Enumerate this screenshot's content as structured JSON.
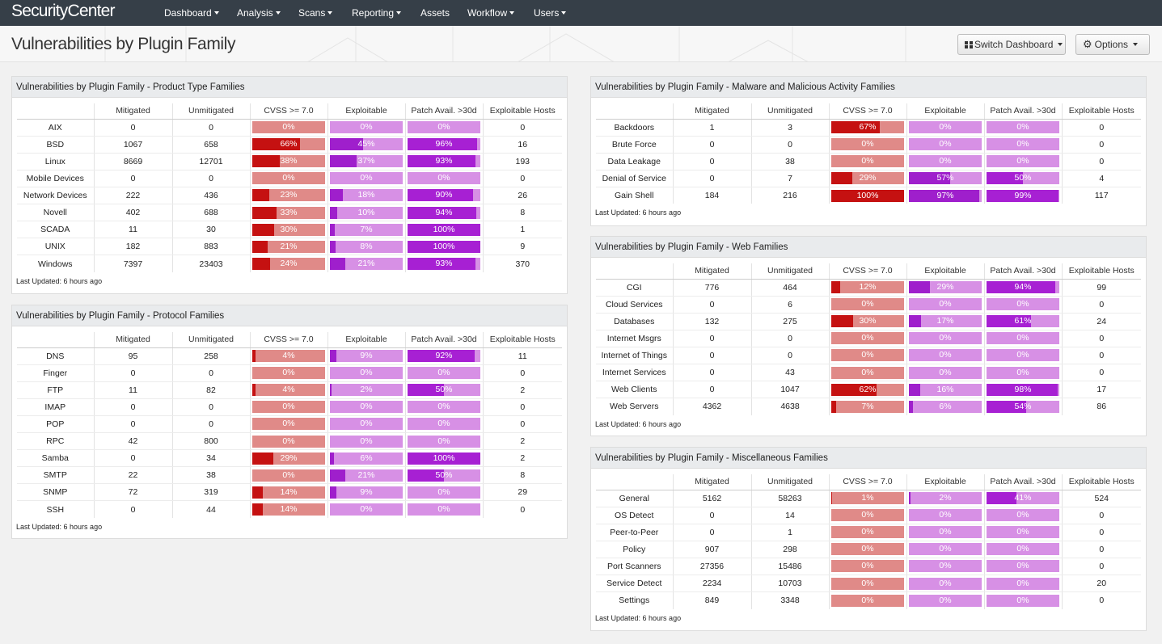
{
  "app": {
    "brand": "SecurityCenter",
    "nav": [
      "Dashboard",
      "Analysis",
      "Scans",
      "Reporting",
      "Assets",
      "Workflow",
      "Users"
    ]
  },
  "page": {
    "title": "Vulnerabilities by Plugin Family",
    "switch_label": "Switch Dashboard",
    "options_label": "Options"
  },
  "colors": {
    "nav_bg": "#363f48",
    "cvss_fill": "#c51111",
    "cvss_track": "#e08a88",
    "purple_fill": "#a720d3",
    "purple_track": "#d790e5"
  },
  "columns": [
    "",
    "Mitigated",
    "Unmitigated",
    "CVSS >= 7.0",
    "Exploitable",
    "Patch Avail. >30d",
    "Exploitable Hosts"
  ],
  "panels": [
    {
      "id": "product",
      "title": "Vulnerabilities by Plugin Family - Product Type Families",
      "updated": "Last Updated: 6 hours ago",
      "rows": [
        {
          "name": "AIX",
          "mitigated": "0",
          "unmitigated": "0",
          "cvss": "0%",
          "exploitable": "0%",
          "patch": "0%",
          "hosts": "0"
        },
        {
          "name": "BSD",
          "mitigated": "1067",
          "unmitigated": "658",
          "cvss": "66%",
          "exploitable": "45%",
          "patch": "96%",
          "hosts": "16"
        },
        {
          "name": "Linux",
          "mitigated": "8669",
          "unmitigated": "12701",
          "cvss": "38%",
          "exploitable": "37%",
          "patch": "93%",
          "hosts": "193"
        },
        {
          "name": "Mobile Devices",
          "mitigated": "0",
          "unmitigated": "0",
          "cvss": "0%",
          "exploitable": "0%",
          "patch": "0%",
          "hosts": "0"
        },
        {
          "name": "Network Devices",
          "mitigated": "222",
          "unmitigated": "436",
          "cvss": "23%",
          "exploitable": "18%",
          "patch": "90%",
          "hosts": "26"
        },
        {
          "name": "Novell",
          "mitigated": "402",
          "unmitigated": "688",
          "cvss": "33%",
          "exploitable": "10%",
          "patch": "94%",
          "hosts": "8"
        },
        {
          "name": "SCADA",
          "mitigated": "11",
          "unmitigated": "30",
          "cvss": "30%",
          "exploitable": "7%",
          "patch": "100%",
          "hosts": "1"
        },
        {
          "name": "UNIX",
          "mitigated": "182",
          "unmitigated": "883",
          "cvss": "21%",
          "exploitable": "8%",
          "patch": "100%",
          "hosts": "9"
        },
        {
          "name": "Windows",
          "mitigated": "7397",
          "unmitigated": "23403",
          "cvss": "24%",
          "exploitable": "21%",
          "patch": "93%",
          "hosts": "370"
        }
      ]
    },
    {
      "id": "protocol",
      "title": "Vulnerabilities by Plugin Family - Protocol Families",
      "updated": "Last Updated: 6 hours ago",
      "rows": [
        {
          "name": "DNS",
          "mitigated": "95",
          "unmitigated": "258",
          "cvss": "4%",
          "exploitable": "9%",
          "patch": "92%",
          "hosts": "11"
        },
        {
          "name": "Finger",
          "mitigated": "0",
          "unmitigated": "0",
          "cvss": "0%",
          "exploitable": "0%",
          "patch": "0%",
          "hosts": "0"
        },
        {
          "name": "FTP",
          "mitigated": "11",
          "unmitigated": "82",
          "cvss": "4%",
          "exploitable": "2%",
          "patch": "50%",
          "hosts": "2"
        },
        {
          "name": "IMAP",
          "mitigated": "0",
          "unmitigated": "0",
          "cvss": "0%",
          "exploitable": "0%",
          "patch": "0%",
          "hosts": "0"
        },
        {
          "name": "POP",
          "mitigated": "0",
          "unmitigated": "0",
          "cvss": "0%",
          "exploitable": "0%",
          "patch": "0%",
          "hosts": "0"
        },
        {
          "name": "RPC",
          "mitigated": "42",
          "unmitigated": "800",
          "cvss": "0%",
          "exploitable": "0%",
          "patch": "0%",
          "hosts": "2"
        },
        {
          "name": "Samba",
          "mitigated": "0",
          "unmitigated": "34",
          "cvss": "29%",
          "exploitable": "6%",
          "patch": "100%",
          "hosts": "2"
        },
        {
          "name": "SMTP",
          "mitigated": "22",
          "unmitigated": "38",
          "cvss": "0%",
          "exploitable": "21%",
          "patch": "50%",
          "hosts": "8"
        },
        {
          "name": "SNMP",
          "mitigated": "72",
          "unmitigated": "319",
          "cvss": "14%",
          "exploitable": "9%",
          "patch": "0%",
          "hosts": "29"
        },
        {
          "name": "SSH",
          "mitigated": "0",
          "unmitigated": "44",
          "cvss": "14%",
          "exploitable": "0%",
          "patch": "0%",
          "hosts": "0"
        }
      ]
    },
    {
      "id": "malware",
      "title": "Vulnerabilities by Plugin Family - Malware and Malicious Activity Families",
      "updated": "Last Updated: 6 hours ago",
      "rows": [
        {
          "name": "Backdoors",
          "mitigated": "1",
          "unmitigated": "3",
          "cvss": "67%",
          "exploitable": "0%",
          "patch": "0%",
          "hosts": "0"
        },
        {
          "name": "Brute Force",
          "mitigated": "0",
          "unmitigated": "0",
          "cvss": "0%",
          "exploitable": "0%",
          "patch": "0%",
          "hosts": "0"
        },
        {
          "name": "Data Leakage",
          "mitigated": "0",
          "unmitigated": "38",
          "cvss": "0%",
          "exploitable": "0%",
          "patch": "0%",
          "hosts": "0"
        },
        {
          "name": "Denial of Service",
          "mitigated": "0",
          "unmitigated": "7",
          "cvss": "29%",
          "exploitable": "57%",
          "patch": "50%",
          "hosts": "4"
        },
        {
          "name": "Gain Shell",
          "mitigated": "184",
          "unmitigated": "216",
          "cvss": "100%",
          "exploitable": "97%",
          "patch": "99%",
          "hosts": "117"
        }
      ]
    },
    {
      "id": "web",
      "title": "Vulnerabilities by Plugin Family - Web Families",
      "updated": "Last Updated: 6 hours ago",
      "rows": [
        {
          "name": "CGI",
          "mitigated": "776",
          "unmitigated": "464",
          "cvss": "12%",
          "exploitable": "29%",
          "patch": "94%",
          "hosts": "99"
        },
        {
          "name": "Cloud Services",
          "mitigated": "0",
          "unmitigated": "6",
          "cvss": "0%",
          "exploitable": "0%",
          "patch": "0%",
          "hosts": "0"
        },
        {
          "name": "Databases",
          "mitigated": "132",
          "unmitigated": "275",
          "cvss": "30%",
          "exploitable": "17%",
          "patch": "61%",
          "hosts": "24"
        },
        {
          "name": "Internet Msgrs",
          "mitigated": "0",
          "unmitigated": "0",
          "cvss": "0%",
          "exploitable": "0%",
          "patch": "0%",
          "hosts": "0"
        },
        {
          "name": "Internet of Things",
          "mitigated": "0",
          "unmitigated": "0",
          "cvss": "0%",
          "exploitable": "0%",
          "patch": "0%",
          "hosts": "0"
        },
        {
          "name": "Internet Services",
          "mitigated": "0",
          "unmitigated": "43",
          "cvss": "0%",
          "exploitable": "0%",
          "patch": "0%",
          "hosts": "0"
        },
        {
          "name": "Web Clients",
          "mitigated": "0",
          "unmitigated": "1047",
          "cvss": "62%",
          "exploitable": "16%",
          "patch": "98%",
          "hosts": "17"
        },
        {
          "name": "Web Servers",
          "mitigated": "4362",
          "unmitigated": "4638",
          "cvss": "7%",
          "exploitable": "6%",
          "patch": "54%",
          "hosts": "86"
        }
      ]
    },
    {
      "id": "misc",
      "title": "Vulnerabilities by Plugin Family - Miscellaneous Families",
      "updated": "Last Updated: 6 hours ago",
      "rows": [
        {
          "name": "General",
          "mitigated": "5162",
          "unmitigated": "58263",
          "cvss": "1%",
          "exploitable": "2%",
          "patch": "41%",
          "hosts": "524"
        },
        {
          "name": "OS Detect",
          "mitigated": "0",
          "unmitigated": "14",
          "cvss": "0%",
          "exploitable": "0%",
          "patch": "0%",
          "hosts": "0"
        },
        {
          "name": "Peer-to-Peer",
          "mitigated": "0",
          "unmitigated": "1",
          "cvss": "0%",
          "exploitable": "0%",
          "patch": "0%",
          "hosts": "0"
        },
        {
          "name": "Policy",
          "mitigated": "907",
          "unmitigated": "298",
          "cvss": "0%",
          "exploitable": "0%",
          "patch": "0%",
          "hosts": "0"
        },
        {
          "name": "Port Scanners",
          "mitigated": "27356",
          "unmitigated": "15486",
          "cvss": "0%",
          "exploitable": "0%",
          "patch": "0%",
          "hosts": "0"
        },
        {
          "name": "Service Detect",
          "mitigated": "2234",
          "unmitigated": "10703",
          "cvss": "0%",
          "exploitable": "0%",
          "patch": "0%",
          "hosts": "20"
        },
        {
          "name": "Settings",
          "mitigated": "849",
          "unmitigated": "3348",
          "cvss": "0%",
          "exploitable": "0%",
          "patch": "0%",
          "hosts": "0"
        }
      ]
    }
  ]
}
